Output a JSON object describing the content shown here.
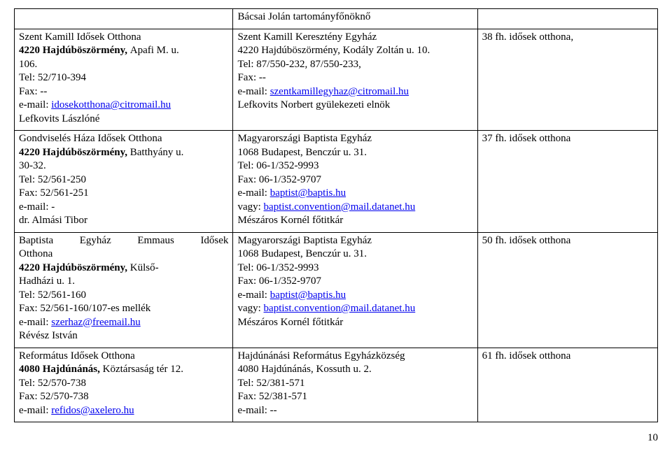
{
  "rows": [
    {
      "col1": {
        "lines": []
      },
      "col2": {
        "lines": [
          {
            "text": "Bácsai Jolán tartományfőnöknő"
          }
        ]
      },
      "col3": {
        "lines": []
      }
    },
    {
      "col1": {
        "lines": [
          {
            "text": "Szent Kamill Idősek Otthona"
          },
          {
            "text": "4220 Hajdúböszörmény, ",
            "bold": true,
            "append": "Apafi M. u."
          },
          {
            "text": "106."
          },
          {
            "text": "Tel: 52/710-394"
          },
          {
            "text": "Fax: --"
          },
          {
            "text": "e-mail: ",
            "link": "idosekotthona@citromail.hu"
          },
          {
            "text": "Lefkovits Lászlóné"
          }
        ]
      },
      "col2": {
        "lines": [
          {
            "text": "Szent Kamill Keresztény Egyház"
          },
          {
            "text": "4220 Hajdúböszörmény, Kodály Zoltán u. 10."
          },
          {
            "text": "Tel: 87/550-232, 87/550-233,"
          },
          {
            "text": "Fax: --"
          },
          {
            "text": "e-mail: ",
            "link": "szentkamillegyhaz@citromail.hu"
          },
          {
            "text": "Lefkovits Norbert gyülekezeti elnök"
          }
        ]
      },
      "col3": {
        "lines": [
          {
            "text": "38 fh. idősek otthona,"
          }
        ]
      }
    },
    {
      "col1": {
        "lines": [
          {
            "text": "Gondviselés Háza Idősek Otthona"
          },
          {
            "text": "4220 Hajdúböszörmény, ",
            "bold": true,
            "append": "Batthyány u."
          },
          {
            "text": "30-32."
          },
          {
            "text": "Tel: 52/561-250"
          },
          {
            "text": "Fax: 52/561-251"
          },
          {
            "text": "e-mail: -"
          },
          {
            "text": "dr. Almási Tibor"
          }
        ]
      },
      "col2": {
        "lines": [
          {
            "text": "Magyarországi Baptista Egyház"
          },
          {
            "text": "1068 Budapest, Benczúr u. 31."
          },
          {
            "text": "Tel: 06-1/352-9993"
          },
          {
            "text": "Fax: 06-1/352-9707"
          },
          {
            "text": "e-mail: ",
            "link": "baptist@baptis.hu"
          },
          {
            "text": "vagy: ",
            "link": "baptist.convention@mail.datanet.hu"
          },
          {
            "text": "Mészáros Kornél főtitkár"
          }
        ]
      },
      "col3": {
        "lines": [
          {
            "text": "37 fh. idősek otthona"
          }
        ]
      }
    },
    {
      "col1": {
        "lines": [
          {
            "justify": true,
            "text": "Baptista   Egyház   Emmaus   Idősek"
          },
          {
            "text": "Otthona"
          },
          {
            "text": "4220 Hajdúböszörmény, ",
            "bold": true,
            "append": "Külső-"
          },
          {
            "text": "Hadházi u. 1."
          },
          {
            "text": "Tel: 52/561-160"
          },
          {
            "text": "Fax: 52/561-160/107-es mellék"
          },
          {
            "text": "e-mail: ",
            "link": "szerhaz@freemail.hu"
          },
          {
            "text": "Révész István"
          }
        ]
      },
      "col2": {
        "lines": [
          {
            "text": "Magyarországi Baptista Egyház"
          },
          {
            "text": "1068 Budapest, Benczúr u. 31."
          },
          {
            "text": "Tel: 06-1/352-9993"
          },
          {
            "text": "Fax: 06-1/352-9707"
          },
          {
            "text": "e-mail: ",
            "link": "baptist@baptis.hu"
          },
          {
            "text": "vagy: ",
            "link": "baptist.convention@mail.datanet.hu"
          },
          {
            "text": "Mészáros Kornél főtitkár"
          }
        ]
      },
      "col3": {
        "lines": [
          {
            "text": "50 fh. idősek otthona"
          }
        ]
      }
    },
    {
      "col1": {
        "lines": [
          {
            "text": "Református Idősek Otthona"
          },
          {
            "text": "4080 Hajdúnánás, ",
            "bold": true,
            "append": "Köztársaság tér 12."
          },
          {
            "text": "Tel: 52/570-738"
          },
          {
            "text": "Fax: 52/570-738"
          },
          {
            "text": "e-mail: ",
            "link": "refidos@axelero.hu"
          }
        ]
      },
      "col2": {
        "lines": [
          {
            "text": "Hajdúnánási Református Egyházközség"
          },
          {
            "text": "4080 Hajdúnánás, Kossuth u. 2."
          },
          {
            "text": "Tel: 52/381-571"
          },
          {
            "text": "Fax: 52/381-571"
          },
          {
            "text": "e-mail: --"
          }
        ]
      },
      "col3": {
        "lines": [
          {
            "text": "61 fh. idősek otthona"
          }
        ]
      }
    }
  ],
  "page_number": "10"
}
